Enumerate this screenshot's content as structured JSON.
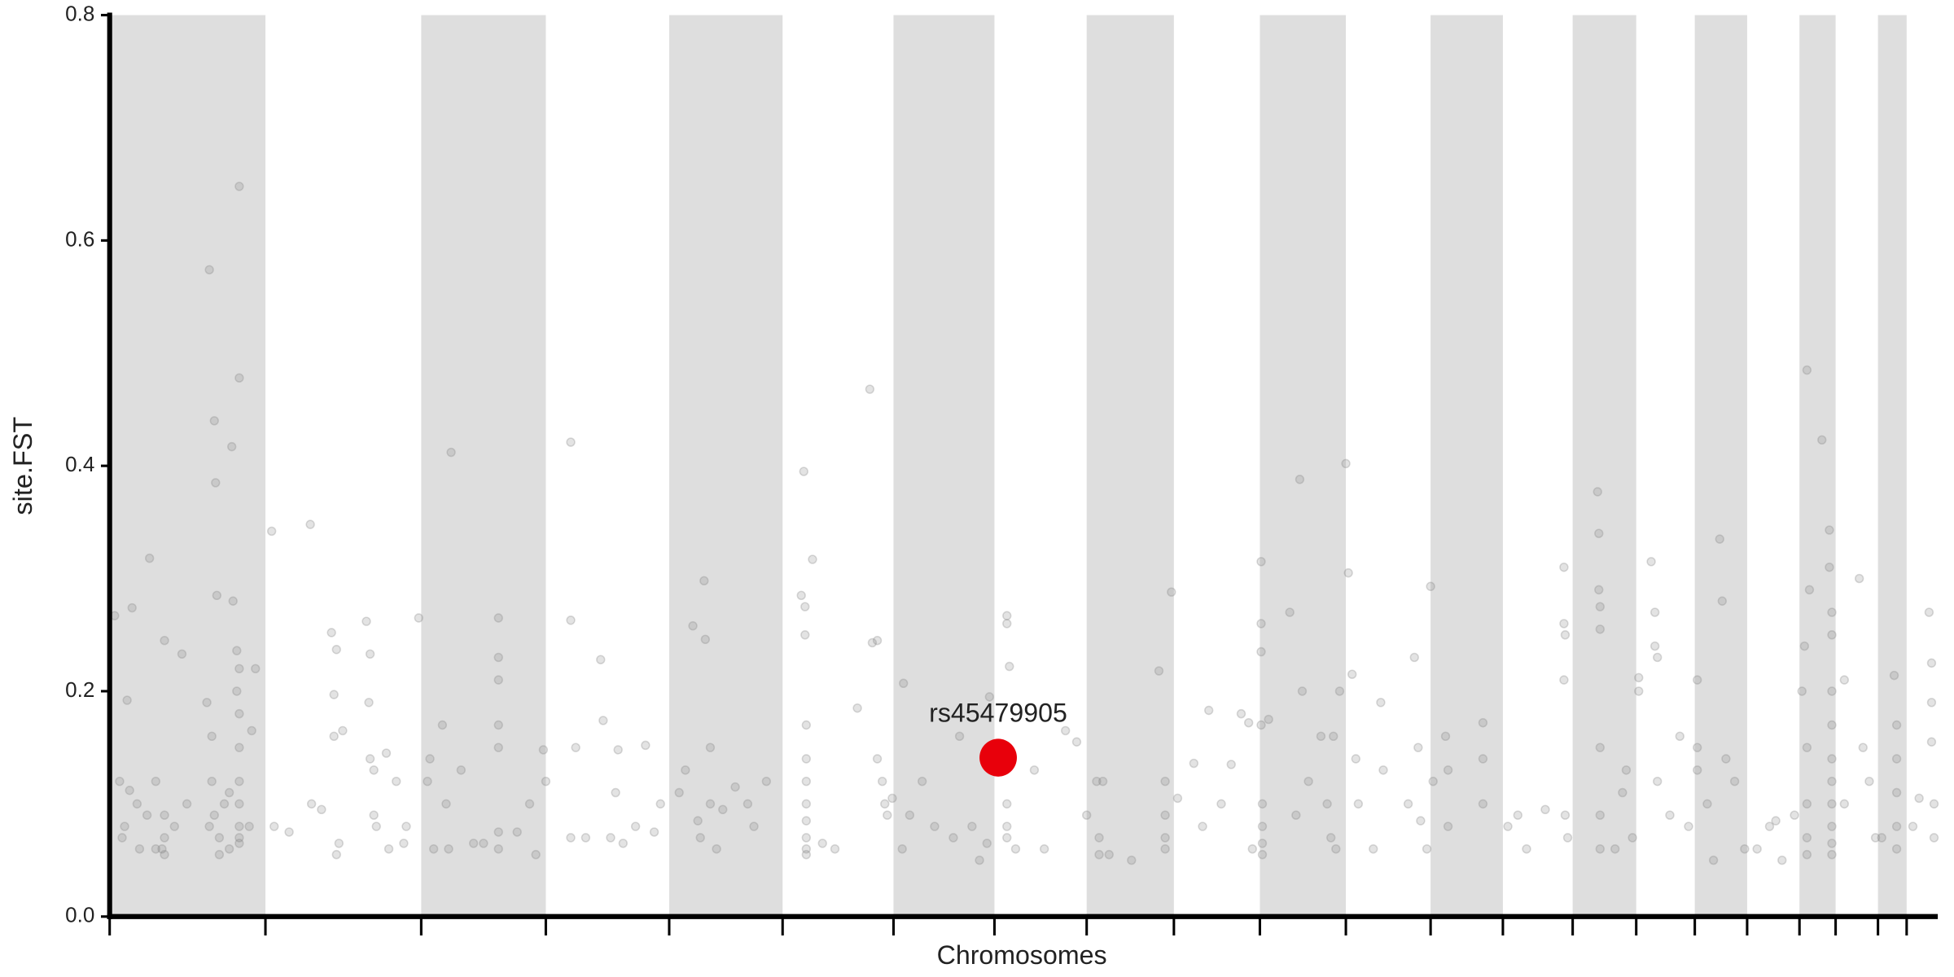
{
  "chart_data": {
    "type": "scatter",
    "ylabel": "site.FST",
    "xlabel": "Chromosomes",
    "xlim": [
      88,
      1555
    ],
    "ylim": [
      0,
      0.8
    ],
    "xticks": [
      88,
      213,
      338,
      438,
      537,
      628,
      717,
      798,
      872,
      942,
      1011,
      1080,
      1148,
      1206,
      1262,
      1313,
      1360,
      1402,
      1444,
      1473,
      1507,
      1530
    ],
    "yticks": [
      {
        "value": 0,
        "label": "0.0"
      },
      0.2,
      0.4,
      0.6,
      0.8
    ],
    "band_color": "#dedede",
    "points": {
      "color": "#808080",
      "x": [
        92,
        96,
        100,
        102,
        106,
        110,
        120,
        125,
        132,
        146,
        112,
        98,
        118,
        130,
        140,
        104,
        125,
        132,
        132,
        132,
        150,
        168,
        172,
        173,
        174,
        166,
        170,
        170,
        172,
        176,
        176,
        168,
        186,
        187,
        190,
        190,
        192,
        192,
        192,
        192,
        192,
        192,
        192,
        192,
        192,
        192,
        184,
        184,
        202,
        205,
        200,
        180,
        218,
        220,
        232,
        249,
        250,
        258,
        266,
        268,
        270,
        268,
        272,
        270,
        275,
        294,
        297,
        296,
        297,
        300,
        300,
        302,
        310,
        312,
        318,
        324,
        326,
        336,
        343,
        345,
        348,
        355,
        358,
        362,
        360,
        370,
        380,
        388,
        400,
        400,
        400,
        400,
        400,
        400,
        400,
        415,
        425,
        430,
        436,
        438,
        458,
        458,
        458,
        462,
        470,
        482,
        484,
        490,
        494,
        496,
        500,
        510,
        518,
        525,
        530,
        545,
        550,
        556,
        560,
        562,
        565,
        566,
        570,
        570,
        575,
        580,
        590,
        600,
        605,
        615,
        643,
        645,
        646,
        646,
        647,
        647,
        647,
        647,
        647,
        647,
        647,
        647,
        652,
        660,
        670,
        688,
        698,
        700,
        704,
        704,
        708,
        710,
        712,
        716,
        725,
        724,
        730,
        740,
        750,
        765,
        770,
        780,
        786,
        794,
        792,
        808,
        808,
        810,
        808,
        808,
        808,
        815,
        830,
        838,
        855,
        864,
        872,
        880,
        885,
        882,
        882,
        890,
        908,
        930,
        935,
        935,
        935,
        935,
        940,
        945,
        958,
        965,
        970,
        980,
        988,
        996,
        1002,
        1005,
        1012,
        1012,
        1012,
        1012,
        1013,
        1013,
        1013,
        1013,
        1018,
        1035,
        1043,
        1045,
        1040,
        1050,
        1060,
        1065,
        1068,
        1070,
        1072,
        1075,
        1080,
        1082,
        1085,
        1088,
        1090,
        1102,
        1108,
        1110,
        1130,
        1135,
        1138,
        1140,
        1145,
        1148,
        1150,
        1160,
        1162,
        1162,
        1190,
        1190,
        1190,
        1210,
        1218,
        1225,
        1240,
        1255,
        1255,
        1256,
        1255,
        1256,
        1258,
        1282,
        1283,
        1283,
        1284,
        1284,
        1284,
        1284,
        1284,
        1296,
        1302,
        1305,
        1310,
        1315,
        1315,
        1325,
        1328,
        1328,
        1330,
        1330,
        1340,
        1348,
        1355,
        1362,
        1362,
        1362,
        1370,
        1375,
        1380,
        1382,
        1385,
        1392,
        1400,
        1410,
        1420,
        1425,
        1430,
        1440,
        1446,
        1448,
        1450,
        1452,
        1450,
        1450,
        1450,
        1450,
        1462,
        1468,
        1468,
        1470,
        1470,
        1470,
        1470,
        1470,
        1470,
        1470,
        1470,
        1470,
        1470,
        1480,
        1480,
        1492,
        1495,
        1500,
        1505,
        1510,
        1520,
        1522,
        1522,
        1522,
        1522,
        1522,
        1535,
        1540,
        1548,
        1550,
        1550,
        1550,
        1552,
        1552
      ],
      "values": [
        0.267,
        0.12,
        0.08,
        0.192,
        0.274,
        0.1,
        0.318,
        0.12,
        0.245,
        0.233,
        0.06,
        0.07,
        0.09,
        0.06,
        0.08,
        0.112,
        0.06,
        0.09,
        0.07,
        0.055,
        0.1,
        0.574,
        0.44,
        0.385,
        0.285,
        0.19,
        0.16,
        0.12,
        0.09,
        0.07,
        0.055,
        0.08,
        0.417,
        0.28,
        0.236,
        0.2,
        0.648,
        0.478,
        0.22,
        0.18,
        0.15,
        0.12,
        0.1,
        0.08,
        0.07,
        0.065,
        0.11,
        0.06,
        0.165,
        0.22,
        0.08,
        0.1,
        0.342,
        0.08,
        0.075,
        0.348,
        0.1,
        0.095,
        0.252,
        0.197,
        0.237,
        0.16,
        0.065,
        0.055,
        0.165,
        0.262,
        0.233,
        0.19,
        0.14,
        0.13,
        0.09,
        0.08,
        0.145,
        0.06,
        0.12,
        0.065,
        0.08,
        0.265,
        0.12,
        0.14,
        0.06,
        0.17,
        0.1,
        0.412,
        0.06,
        0.13,
        0.065,
        0.065,
        0.265,
        0.23,
        0.21,
        0.17,
        0.15,
        0.075,
        0.06,
        0.075,
        0.1,
        0.055,
        0.148,
        0.12,
        0.421,
        0.263,
        0.07,
        0.15,
        0.07,
        0.228,
        0.174,
        0.07,
        0.11,
        0.148,
        0.065,
        0.08,
        0.152,
        0.075,
        0.1,
        0.11,
        0.13,
        0.258,
        0.085,
        0.07,
        0.298,
        0.246,
        0.15,
        0.1,
        0.06,
        0.095,
        0.115,
        0.1,
        0.08,
        0.12,
        0.285,
        0.395,
        0.275,
        0.25,
        0.17,
        0.14,
        0.12,
        0.1,
        0.085,
        0.07,
        0.06,
        0.055,
        0.317,
        0.065,
        0.06,
        0.185,
        0.468,
        0.243,
        0.245,
        0.14,
        0.12,
        0.1,
        0.09,
        0.105,
        0.207,
        0.06,
        0.09,
        0.12,
        0.08,
        0.07,
        0.16,
        0.08,
        0.05,
        0.195,
        0.065,
        0.267,
        0.26,
        0.222,
        0.1,
        0.08,
        0.07,
        0.06,
        0.13,
        0.06,
        0.165,
        0.155,
        0.09,
        0.12,
        0.12,
        0.07,
        0.055,
        0.055,
        0.05,
        0.218,
        0.12,
        0.09,
        0.07,
        0.06,
        0.288,
        0.105,
        0.136,
        0.08,
        0.183,
        0.1,
        0.135,
        0.18,
        0.172,
        0.06,
        0.315,
        0.26,
        0.235,
        0.17,
        0.1,
        0.08,
        0.065,
        0.055,
        0.175,
        0.27,
        0.388,
        0.2,
        0.09,
        0.12,
        0.16,
        0.1,
        0.07,
        0.16,
        0.06,
        0.2,
        0.402,
        0.305,
        0.215,
        0.14,
        0.1,
        0.06,
        0.19,
        0.13,
        0.1,
        0.23,
        0.15,
        0.085,
        0.06,
        0.293,
        0.12,
        0.16,
        0.13,
        0.08,
        0.172,
        0.14,
        0.1,
        0.08,
        0.09,
        0.06,
        0.095,
        0.31,
        0.26,
        0.25,
        0.21,
        0.09,
        0.07,
        0.377,
        0.34,
        0.29,
        0.275,
        0.255,
        0.15,
        0.09,
        0.06,
        0.06,
        0.11,
        0.13,
        0.07,
        0.212,
        0.2,
        0.315,
        0.27,
        0.24,
        0.23,
        0.12,
        0.09,
        0.16,
        0.08,
        0.21,
        0.15,
        0.13,
        0.1,
        0.05,
        0.335,
        0.28,
        0.14,
        0.12,
        0.06,
        0.06,
        0.08,
        0.085,
        0.05,
        0.09,
        0.2,
        0.24,
        0.485,
        0.29,
        0.15,
        0.1,
        0.07,
        0.055,
        0.423,
        0.343,
        0.31,
        0.27,
        0.25,
        0.2,
        0.17,
        0.14,
        0.12,
        0.1,
        0.08,
        0.065,
        0.055,
        0.21,
        0.1,
        0.3,
        0.15,
        0.12,
        0.07,
        0.07,
        0.214,
        0.17,
        0.14,
        0.11,
        0.08,
        0.06,
        0.08,
        0.105,
        0.27,
        0.225,
        0.19,
        0.155,
        0.1,
        0.07
      ]
    },
    "highlight": {
      "label": "rs45479905",
      "x": 801,
      "value": 0.141,
      "color": "#e8000b"
    }
  }
}
